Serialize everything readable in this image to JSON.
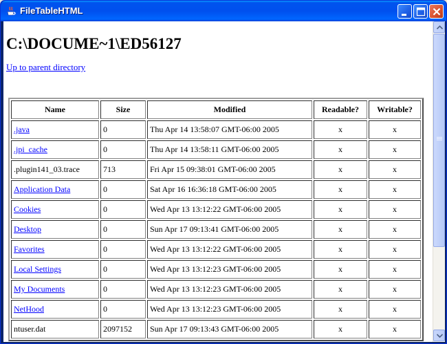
{
  "window": {
    "title": "FileTableHTML"
  },
  "page": {
    "heading": "C:\\DOCUME~1\\ED56127",
    "parent_link": "Up to parent directory"
  },
  "table": {
    "headers": {
      "name": "Name",
      "size": "Size",
      "modified": "Modified",
      "readable": "Readable?",
      "writable": "Writable?"
    },
    "rows": [
      {
        "name": ".java",
        "is_link": true,
        "size": "0",
        "modified": "Thu Apr 14 13:58:07 GMT-06:00 2005",
        "readable": "x",
        "writable": "x"
      },
      {
        "name": ".jpi_cache",
        "is_link": true,
        "size": "0",
        "modified": "Thu Apr 14 13:58:11 GMT-06:00 2005",
        "readable": "x",
        "writable": "x"
      },
      {
        "name": ".plugin141_03.trace",
        "is_link": false,
        "size": "713",
        "modified": "Fri Apr 15 09:38:01 GMT-06:00 2005",
        "readable": "x",
        "writable": "x"
      },
      {
        "name": "Application Data",
        "is_link": true,
        "size": "0",
        "modified": "Sat Apr 16 16:36:18 GMT-06:00 2005",
        "readable": "x",
        "writable": "x"
      },
      {
        "name": "Cookies",
        "is_link": true,
        "size": "0",
        "modified": "Wed Apr 13 13:12:22 GMT-06:00 2005",
        "readable": "x",
        "writable": "x"
      },
      {
        "name": "Desktop",
        "is_link": true,
        "size": "0",
        "modified": "Sun Apr 17 09:13:41 GMT-06:00 2005",
        "readable": "x",
        "writable": "x"
      },
      {
        "name": "Favorites",
        "is_link": true,
        "size": "0",
        "modified": "Wed Apr 13 13:12:22 GMT-06:00 2005",
        "readable": "x",
        "writable": "x"
      },
      {
        "name": "Local Settings",
        "is_link": true,
        "size": "0",
        "modified": "Wed Apr 13 13:12:23 GMT-06:00 2005",
        "readable": "x",
        "writable": "x"
      },
      {
        "name": "My Documents",
        "is_link": true,
        "size": "0",
        "modified": "Wed Apr 13 13:12:23 GMT-06:00 2005",
        "readable": "x",
        "writable": "x"
      },
      {
        "name": "NetHood",
        "is_link": true,
        "size": "0",
        "modified": "Wed Apr 13 13:12:23 GMT-06:00 2005",
        "readable": "x",
        "writable": "x"
      },
      {
        "name": "ntuser.dat",
        "is_link": false,
        "size": "2097152",
        "modified": "Sun Apr 17 09:13:43 GMT-06:00 2005",
        "readable": "x",
        "writable": "x"
      }
    ]
  },
  "colors": {
    "titlebar": "#0054e3",
    "link": "#0000ff",
    "close_button": "#d8502e"
  },
  "icons": {
    "app": "java-cup-icon",
    "minimize": "minimize-icon",
    "maximize": "maximize-icon",
    "close": "close-icon"
  }
}
